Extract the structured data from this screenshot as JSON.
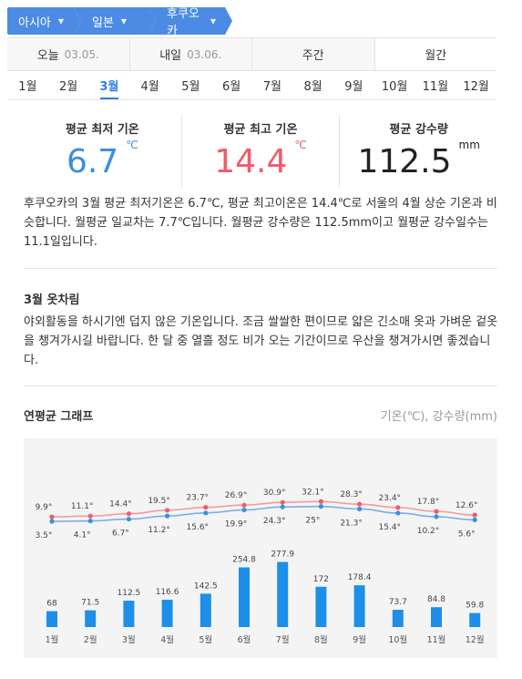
{
  "breadcrumb": [
    {
      "label": "아시아"
    },
    {
      "label": "일본"
    },
    {
      "label": "후쿠오카"
    }
  ],
  "day_tabs": [
    {
      "label": "오늘",
      "date": "03.05."
    },
    {
      "label": "내일",
      "date": "03.06."
    },
    {
      "label": "주간",
      "date": ""
    },
    {
      "label": "월간",
      "date": ""
    }
  ],
  "months": [
    "1월",
    "2월",
    "3월",
    "4월",
    "5월",
    "6월",
    "7월",
    "8월",
    "9월",
    "10월",
    "11월",
    "12월"
  ],
  "active_month_index": 2,
  "stats": {
    "min": {
      "label": "평균 최저 기온",
      "value": "6.7",
      "unit": "℃"
    },
    "max": {
      "label": "평균 최고 기온",
      "value": "14.4",
      "unit": "℃"
    },
    "rain": {
      "label": "평균 강수량",
      "value": "112.5",
      "unit": "mm"
    }
  },
  "description": "후쿠오카의 3월 평균 최저기온은 6.7℃, 평균 최고이온은 14.4℃로 서울의 4월 상순 기온과 비슷합니다. 월평균 일교차는 7.7℃입니다. 월평균 강수량은 112.5mm이고 월평균 강수일수는 11.1일입니다.",
  "clothes": {
    "title": "3월 옷차림",
    "text": "야외활동을 하시기엔 덥지 않은 기온입니다. 조금 쌀쌀한 편이므로 얇은 긴소매 옷과 가벼운 겉옷을 챙겨가시길 바랍니다. 한 달 중 열흘 정도 비가 오는 기간이므로 우산을 챙겨가시면 좋겠습니다."
  },
  "graph": {
    "title": "연평균 그래프",
    "unit_label": "기온(℃), 강수량(mm)"
  },
  "colors": {
    "accent": "#4b8be3",
    "min_line": "#7aaee8",
    "max_line": "#f29aa3",
    "min_dot": "#3a8fdf",
    "max_dot": "#ef5b6a",
    "bar": "#1e8fe8"
  },
  "chart_data": {
    "type": "line+bar",
    "categories": [
      "1월",
      "2월",
      "3월",
      "4월",
      "5월",
      "6월",
      "7월",
      "8월",
      "9월",
      "10월",
      "11월",
      "12월"
    ],
    "series": [
      {
        "values": [
          9.9,
          11.1,
          14.4,
          19.5,
          23.7,
          26.9,
          30.9,
          32.1,
          28.3,
          23.4,
          17.8,
          12.6
        ],
        "labels": [
          "9.9°",
          "11.1°",
          "14.4°",
          "19.5°",
          "23.7°",
          "26.9°",
          "30.9°",
          "32.1°",
          "28.3°",
          "23.4°",
          "17.8°",
          "12.6°"
        ]
      },
      {
        "values": [
          3.5,
          4.1,
          6.7,
          11.2,
          15.6,
          19.9,
          24.3,
          25,
          21.3,
          15.4,
          10.2,
          5.6
        ],
        "labels": [
          "3.5°",
          "4.1°",
          "6.7°",
          "11.2°",
          "15.6°",
          "19.9°",
          "24.3°",
          "25°",
          "21.3°",
          "15.4°",
          "10.2°",
          "5.6°"
        ]
      },
      {
        "values": [
          68,
          71.5,
          112.5,
          116.6,
          142.5,
          254.8,
          277.9,
          172,
          178.4,
          73.7,
          84.8,
          59.8
        ],
        "labels": [
          "68",
          "71.5",
          "112.5",
          "116.6",
          "142.5",
          "254.8",
          "277.9",
          "172",
          "178.4",
          "73.7",
          "84.8",
          "59.8"
        ]
      }
    ]
  }
}
